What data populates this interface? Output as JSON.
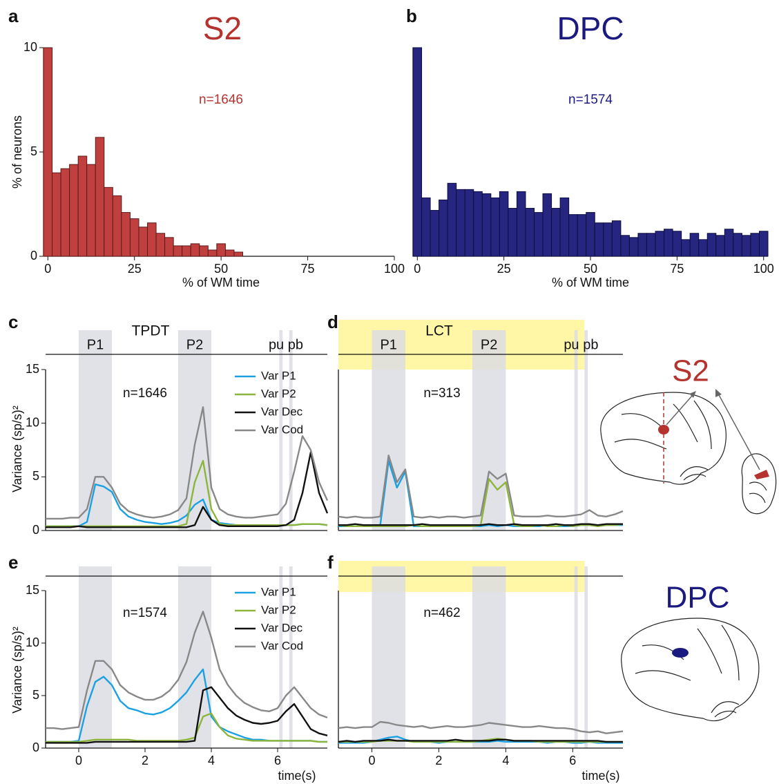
{
  "chart_data": [
    {
      "panel": "a",
      "type": "histogram",
      "title": "S2",
      "text_color": "#b5332e",
      "annotation": "n=1646",
      "xlabel": "% of WM time",
      "ylabel": "% of neurons",
      "color": "#c0403f",
      "edgecolor": "#5a1a1a",
      "bins": [
        -1.25,
        1.25,
        3.75,
        6.25,
        8.75,
        11.25,
        13.75,
        16.25,
        18.75,
        21.25,
        23.75,
        26.25,
        28.75,
        31.25,
        33.75,
        36.25,
        38.75,
        41.25,
        43.75,
        46.25,
        48.75,
        51.25,
        53.75,
        56.25
      ],
      "values": [
        10,
        4.0,
        4.2,
        4.4,
        4.8,
        4.4,
        5.7,
        3.3,
        2.9,
        2.1,
        1.8,
        1.4,
        1.6,
        1.1,
        0.9,
        0.5,
        0.5,
        0.6,
        0.5,
        0.3,
        0.6,
        0.3,
        0.2
      ],
      "xlim": [
        -1.25,
        100
      ],
      "xticks": [
        0,
        25,
        50,
        75,
        100
      ],
      "ylim": [
        0,
        10
      ],
      "yticks": [
        0,
        5,
        10
      ]
    },
    {
      "panel": "b",
      "type": "histogram",
      "title": "DPC",
      "text_color": "#1a1a80",
      "annotation": "n=1574",
      "xlabel": "% of WM time",
      "color": "#262680",
      "edgecolor": "#0d0d40",
      "bins": [
        -1.25,
        1.25,
        3.75,
        6.25,
        8.75,
        11.25,
        13.75,
        16.25,
        18.75,
        21.25,
        23.75,
        26.25,
        28.75,
        31.25,
        33.75,
        36.25,
        38.75,
        41.25,
        43.75,
        46.25,
        48.75,
        51.25,
        53.75,
        56.25,
        58.75,
        61.25,
        63.75,
        66.25,
        68.75,
        71.25,
        73.75,
        76.25,
        78.75,
        81.25,
        83.75,
        86.25,
        88.75,
        91.25,
        93.75,
        96.25,
        98.75,
        101.25
      ],
      "values": [
        10,
        2.8,
        2.2,
        2.7,
        3.5,
        3.2,
        3.2,
        3.1,
        3.0,
        2.8,
        3.1,
        2.3,
        3.1,
        2.3,
        2.1,
        3.0,
        2.3,
        2.8,
        2.0,
        2.0,
        2.1,
        1.6,
        1.6,
        1.7,
        1.0,
        0.9,
        1.1,
        1.1,
        1.2,
        1.3,
        1.2,
        0.8,
        1.1,
        0.8,
        1.1,
        1.0,
        1.3,
        1.1,
        1.0,
        1.1,
        1.2
      ],
      "xlim": [
        -1.25,
        101.25
      ],
      "xticks": [
        0,
        25,
        50,
        75,
        100
      ],
      "ylim": [
        0,
        10
      ]
    },
    {
      "panel": "c",
      "type": "line",
      "title": "TPDT",
      "annotation": "n=1646",
      "ylabel": "Variance (sp/s)²",
      "legend": true,
      "bands": [
        {
          "label": "P1",
          "start": 0,
          "end": 1
        },
        {
          "label": "P2",
          "start": 3,
          "end": 4
        },
        {
          "label": "pu",
          "start": 6.05,
          "end": 6.15
        },
        {
          "label": "pb",
          "start": 6.35,
          "end": 6.45
        }
      ],
      "x": [
        -1,
        -0.75,
        -0.5,
        -0.25,
        0,
        0.25,
        0.5,
        0.75,
        1,
        1.25,
        1.5,
        1.75,
        2,
        2.25,
        2.5,
        2.75,
        3,
        3.25,
        3.5,
        3.75,
        4,
        4.25,
        4.5,
        4.75,
        5,
        5.25,
        5.5,
        5.75,
        6,
        6.25,
        6.5,
        6.75,
        7,
        7.25,
        7.5
      ],
      "series": [
        {
          "name": "Var P1",
          "color": "#1ba1e2",
          "values": [
            0.4,
            0.4,
            0.4,
            0.4,
            0.4,
            0.8,
            4.3,
            4.1,
            3.6,
            2.0,
            1.3,
            1.0,
            0.8,
            0.7,
            0.6,
            0.7,
            0.9,
            1.4,
            2.4,
            2.9,
            1.0,
            0.7,
            0.6,
            0.5,
            0.5,
            0.5,
            0.5,
            0.5,
            0.5,
            0.5,
            0.5,
            0.6,
            0.6,
            0.6,
            0.5
          ]
        },
        {
          "name": "Var P2",
          "color": "#8db53c",
          "values": [
            0.4,
            0.4,
            0.4,
            0.4,
            0.4,
            0.4,
            0.4,
            0.4,
            0.4,
            0.4,
            0.4,
            0.4,
            0.4,
            0.4,
            0.4,
            0.4,
            0.4,
            0.6,
            4.5,
            6.5,
            2.0,
            0.6,
            0.5,
            0.5,
            0.5,
            0.5,
            0.5,
            0.5,
            0.5,
            0.5,
            0.5,
            0.6,
            0.6,
            0.6,
            0.5
          ]
        },
        {
          "name": "Var Dec",
          "color": "#111111",
          "values": [
            0.3,
            0.3,
            0.3,
            0.3,
            0.4,
            0.3,
            0.3,
            0.3,
            0.3,
            0.3,
            0.3,
            0.3,
            0.3,
            0.3,
            0.3,
            0.3,
            0.3,
            0.3,
            0.5,
            2.2,
            1.0,
            0.5,
            0.4,
            0.4,
            0.4,
            0.4,
            0.4,
            0.4,
            0.4,
            0.5,
            1.0,
            3.5,
            7.3,
            3.5,
            1.6
          ]
        },
        {
          "name": "Var Cod",
          "color": "#888888",
          "values": [
            1.1,
            1.1,
            1.1,
            1.2,
            1.2,
            2.0,
            5.0,
            5.0,
            4.0,
            2.5,
            1.8,
            1.5,
            1.3,
            1.2,
            1.3,
            1.5,
            1.9,
            3.0,
            8.0,
            11.5,
            4.0,
            2.0,
            1.5,
            1.3,
            1.2,
            1.2,
            1.3,
            1.4,
            1.5,
            2.5,
            5.5,
            8.8,
            7.5,
            4.5,
            2.8
          ]
        }
      ],
      "xlim": [
        -1,
        7.5
      ],
      "ylim": [
        0,
        15
      ],
      "yticks": [
        0,
        5,
        10,
        15
      ]
    },
    {
      "panel": "d",
      "type": "line",
      "title": "LCT",
      "annotation": "n=313",
      "highlight": {
        "start": -1,
        "end": 6.35,
        "color": "#fff7a6"
      },
      "bands": [
        {
          "label": "P1",
          "start": 0,
          "end": 1
        },
        {
          "label": "P2",
          "start": 3,
          "end": 4
        },
        {
          "label": "pu",
          "start": 6.05,
          "end": 6.15
        },
        {
          "label": "pb",
          "start": 6.35,
          "end": 6.45
        }
      ],
      "x": [
        -1,
        -0.75,
        -0.5,
        -0.25,
        0,
        0.25,
        0.5,
        0.75,
        1,
        1.25,
        1.5,
        1.75,
        2,
        2.25,
        2.5,
        2.75,
        3,
        3.25,
        3.5,
        3.75,
        4,
        4.25,
        4.5,
        4.75,
        5,
        5.25,
        5.5,
        5.75,
        6,
        6.25,
        6.5,
        6.75,
        7,
        7.25,
        7.5
      ],
      "series": [
        {
          "color": "#1ba1e2",
          "values": [
            0.4,
            0.4,
            0.4,
            0.4,
            0.4,
            0.5,
            6.5,
            4.0,
            5.5,
            0.4,
            0.4,
            0.4,
            0.4,
            0.4,
            0.4,
            0.4,
            0.4,
            0.4,
            0.5,
            0.4,
            0.5,
            0.4,
            0.4,
            0.4,
            0.4,
            0.5,
            0.4,
            0.4,
            0.4,
            0.5,
            0.5,
            0.4,
            0.5,
            0.5,
            0.5
          ]
        },
        {
          "color": "#8db53c",
          "values": [
            0.5,
            0.4,
            0.4,
            0.4,
            0.4,
            0.4,
            0.4,
            0.4,
            0.4,
            0.5,
            0.4,
            0.4,
            0.4,
            0.4,
            0.4,
            0.4,
            0.4,
            0.5,
            4.8,
            3.8,
            4.5,
            0.5,
            0.4,
            0.4,
            0.5,
            0.4,
            0.4,
            0.5,
            0.4,
            0.5,
            0.5,
            0.4,
            0.5,
            0.5,
            0.6
          ]
        },
        {
          "color": "#111111",
          "values": [
            0.5,
            0.5,
            0.6,
            0.5,
            0.5,
            0.5,
            0.5,
            0.5,
            0.5,
            0.5,
            0.6,
            0.5,
            0.5,
            0.5,
            0.5,
            0.5,
            0.5,
            0.5,
            0.6,
            0.5,
            0.5,
            0.6,
            0.5,
            0.5,
            0.5,
            0.5,
            0.6,
            0.5,
            0.5,
            0.6,
            0.6,
            0.5,
            0.6,
            0.6,
            0.6
          ]
        },
        {
          "color": "#888888",
          "values": [
            1.3,
            1.2,
            1.3,
            1.2,
            1.2,
            1.3,
            7.0,
            4.5,
            5.7,
            1.3,
            1.2,
            1.3,
            1.2,
            1.3,
            1.3,
            1.2,
            1.3,
            1.4,
            5.5,
            4.8,
            5.3,
            1.4,
            1.3,
            1.3,
            1.3,
            1.4,
            1.3,
            1.3,
            1.4,
            1.5,
            1.9,
            1.4,
            1.3,
            1.5,
            1.8
          ]
        }
      ],
      "xlim": [
        -1,
        7.5
      ],
      "ylim": [
        0,
        15
      ]
    },
    {
      "panel": "e",
      "type": "line",
      "annotation": "n=1574",
      "ylabel": "Variance (sp/s)²",
      "xlabel": "time(s)",
      "legend": true,
      "bands": [
        {
          "start": 0,
          "end": 1
        },
        {
          "start": 3,
          "end": 4
        },
        {
          "start": 6.05,
          "end": 6.15
        },
        {
          "start": 6.35,
          "end": 6.45
        }
      ],
      "x": [
        -1,
        -0.75,
        -0.5,
        -0.25,
        0,
        0.25,
        0.5,
        0.75,
        1,
        1.25,
        1.5,
        1.75,
        2,
        2.25,
        2.5,
        2.75,
        3,
        3.25,
        3.5,
        3.75,
        4,
        4.25,
        4.5,
        4.75,
        5,
        5.25,
        5.5,
        5.75,
        6,
        6.25,
        6.5,
        6.75,
        7,
        7.25,
        7.5
      ],
      "series": [
        {
          "name": "Var P1",
          "color": "#1ba1e2",
          "values": [
            0.6,
            0.6,
            0.6,
            0.6,
            0.7,
            4.0,
            6.3,
            6.8,
            6.0,
            4.5,
            3.8,
            3.6,
            3.3,
            3.2,
            3.4,
            3.8,
            4.5,
            5.3,
            6.5,
            7.5,
            3.0,
            2.0,
            1.6,
            1.3,
            1.0,
            0.8,
            0.8,
            0.7,
            0.7,
            0.7,
            0.7,
            0.7,
            0.7,
            0.6,
            0.6
          ]
        },
        {
          "name": "Var P2",
          "color": "#8db53c",
          "values": [
            0.6,
            0.6,
            0.6,
            0.6,
            0.6,
            0.7,
            0.8,
            0.8,
            0.8,
            0.8,
            0.8,
            0.7,
            0.7,
            0.7,
            0.7,
            0.7,
            0.7,
            0.8,
            1.0,
            3.0,
            3.3,
            2.0,
            1.2,
            0.9,
            0.8,
            0.7,
            0.7,
            0.7,
            0.7,
            0.7,
            0.7,
            0.7,
            0.7,
            0.6,
            0.6
          ]
        },
        {
          "name": "Var Dec",
          "color": "#111111",
          "values": [
            0.5,
            0.5,
            0.5,
            0.5,
            0.5,
            0.5,
            0.6,
            0.6,
            0.6,
            0.6,
            0.6,
            0.6,
            0.6,
            0.6,
            0.6,
            0.6,
            0.6,
            0.6,
            0.7,
            5.5,
            5.8,
            4.8,
            3.8,
            3.1,
            2.7,
            2.4,
            2.3,
            2.4,
            2.6,
            3.5,
            4.2,
            3.0,
            1.8,
            1.4,
            1.2
          ]
        },
        {
          "name": "Var Cod",
          "color": "#888888",
          "values": [
            1.9,
            1.9,
            1.8,
            1.9,
            2.0,
            5.5,
            8.3,
            8.3,
            7.5,
            6.0,
            5.3,
            4.9,
            4.6,
            4.6,
            4.9,
            5.5,
            6.5,
            8.2,
            11.0,
            13.0,
            10.5,
            7.5,
            6.0,
            5.0,
            4.3,
            3.9,
            3.6,
            3.5,
            3.8,
            5.0,
            5.8,
            4.8,
            3.8,
            3.2,
            2.9
          ]
        }
      ],
      "xlim": [
        -1,
        7.5
      ],
      "xticks": [
        0,
        2,
        4,
        6
      ],
      "ylim": [
        0,
        15
      ],
      "yticks": [
        0,
        5,
        10,
        15
      ]
    },
    {
      "panel": "f",
      "type": "line",
      "annotation": "n=462",
      "xlabel": "time(s)",
      "highlight": {
        "start": -1,
        "end": 6.35,
        "color": "#fff7a6"
      },
      "bands": [
        {
          "start": 0,
          "end": 1
        },
        {
          "start": 3,
          "end": 4
        },
        {
          "start": 6.05,
          "end": 6.15
        },
        {
          "start": 6.35,
          "end": 6.45
        }
      ],
      "x": [
        -1,
        -0.75,
        -0.5,
        -0.25,
        0,
        0.25,
        0.5,
        0.75,
        1,
        1.25,
        1.5,
        1.75,
        2,
        2.25,
        2.5,
        2.75,
        3,
        3.25,
        3.5,
        3.75,
        4,
        4.25,
        4.5,
        4.75,
        5,
        5.25,
        5.5,
        5.75,
        6,
        6.25,
        6.5,
        6.75,
        7,
        7.25,
        7.5
      ],
      "series": [
        {
          "color": "#1ba1e2",
          "values": [
            0.5,
            0.5,
            0.5,
            0.5,
            0.6,
            0.8,
            1.0,
            1.1,
            0.8,
            0.6,
            0.6,
            0.6,
            0.5,
            0.6,
            0.6,
            0.6,
            0.6,
            0.6,
            0.6,
            0.7,
            0.6,
            0.6,
            0.6,
            0.6,
            0.6,
            0.5,
            0.6,
            0.6,
            0.5,
            0.5,
            0.6,
            0.5,
            0.5,
            0.5,
            0.5
          ]
        },
        {
          "color": "#8db53c",
          "values": [
            0.6,
            0.6,
            0.6,
            0.6,
            0.6,
            0.7,
            0.7,
            0.7,
            0.7,
            0.6,
            0.6,
            0.6,
            0.6,
            0.6,
            0.6,
            0.6,
            0.6,
            0.7,
            0.8,
            0.9,
            0.8,
            0.7,
            0.7,
            0.7,
            0.6,
            0.6,
            0.6,
            0.6,
            0.6,
            0.6,
            0.6,
            0.6,
            0.6,
            0.6,
            0.6
          ]
        },
        {
          "color": "#111111",
          "values": [
            0.6,
            0.7,
            0.6,
            0.7,
            0.7,
            0.7,
            0.8,
            0.7,
            0.7,
            0.7,
            0.7,
            0.7,
            0.7,
            0.7,
            0.8,
            0.7,
            0.7,
            0.7,
            0.7,
            0.8,
            0.8,
            0.7,
            0.7,
            0.7,
            0.7,
            0.7,
            0.7,
            0.7,
            0.7,
            0.7,
            0.7,
            0.7,
            0.6,
            0.6,
            0.6
          ]
        },
        {
          "color": "#888888",
          "values": [
            1.9,
            2.0,
            1.9,
            2.0,
            2.0,
            2.5,
            2.4,
            2.2,
            2.1,
            2.0,
            2.1,
            1.9,
            2.0,
            2.1,
            2.0,
            2.0,
            2.1,
            2.2,
            2.4,
            2.3,
            2.2,
            2.1,
            2.0,
            2.0,
            2.1,
            2.0,
            1.9,
            1.9,
            1.8,
            1.6,
            1.5,
            1.6,
            1.4,
            1.5,
            1.6
          ]
        }
      ],
      "xlim": [
        -1,
        7.5
      ],
      "xticks": [
        0,
        2,
        4,
        6
      ],
      "ylim": [
        0,
        15
      ]
    }
  ],
  "brains": [
    {
      "label": "S2",
      "color": "#b5332e"
    },
    {
      "label": "DPC",
      "color": "#1a1a80"
    }
  ]
}
